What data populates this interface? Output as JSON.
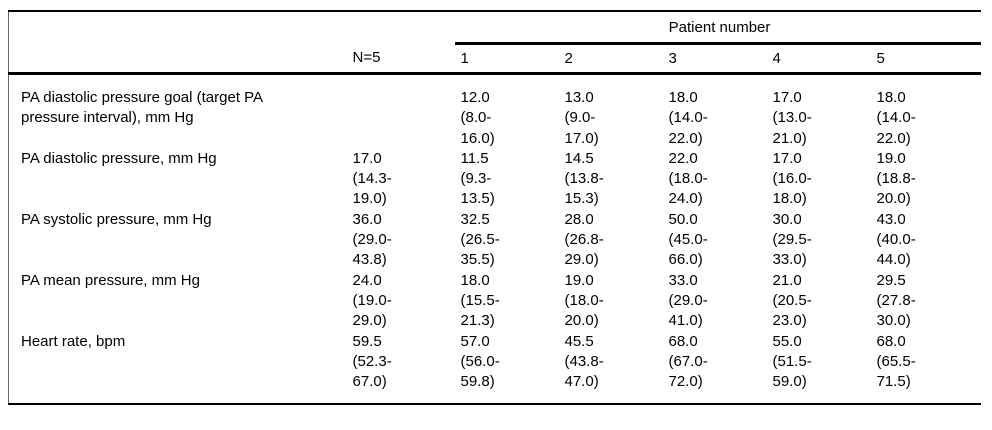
{
  "table": {
    "spanner_label": "Patient number",
    "column_headers": {
      "row_label": "",
      "n": "N=5",
      "patients": [
        "1",
        "2",
        "3",
        "4",
        "5"
      ]
    },
    "rows": [
      {
        "label_lines": [
          "PA diastolic pressure goal (target PA",
          "pressure interval), mm Hg"
        ],
        "n5_lines": [],
        "patient_cells": [
          [
            "12.0",
            "(8.0-",
            "16.0)"
          ],
          [
            "13.0",
            "(9.0-",
            "17.0)"
          ],
          [
            "18.0",
            "(14.0-",
            "22.0)"
          ],
          [
            "17.0",
            "(13.0-",
            "21.0)"
          ],
          [
            "18.0",
            "(14.0-",
            "22.0)"
          ]
        ]
      },
      {
        "label_lines": [
          "PA diastolic pressure, mm Hg"
        ],
        "n5_lines": [
          "17.0",
          "(14.3-",
          "19.0)"
        ],
        "patient_cells": [
          [
            "11.5",
            "(9.3-",
            "13.5)"
          ],
          [
            "14.5",
            "(13.8-",
            "15.3)"
          ],
          [
            "22.0",
            "(18.0-",
            "24.0)"
          ],
          [
            "17.0",
            "(16.0-",
            "18.0)"
          ],
          [
            "19.0",
            "(18.8-",
            "20.0)"
          ]
        ]
      },
      {
        "label_lines": [
          "PA systolic pressure, mm Hg"
        ],
        "n5_lines": [
          "36.0",
          "(29.0-",
          "43.8)"
        ],
        "patient_cells": [
          [
            "32.5",
            "(26.5-",
            "35.5)"
          ],
          [
            "28.0",
            "(26.8-",
            "29.0)"
          ],
          [
            "50.0",
            "(45.0-",
            "66.0)"
          ],
          [
            "30.0",
            "(29.5-",
            "33.0)"
          ],
          [
            "43.0",
            "(40.0-",
            "44.0)"
          ]
        ]
      },
      {
        "label_lines": [
          "PA mean pressure, mm Hg"
        ],
        "n5_lines": [
          "24.0",
          "(19.0-",
          "29.0)"
        ],
        "patient_cells": [
          [
            "18.0",
            "(15.5-",
            "21.3)"
          ],
          [
            "19.0",
            "(18.0-",
            "20.0)"
          ],
          [
            "33.0",
            "(29.0-",
            "41.0)"
          ],
          [
            "21.0",
            "(20.5-",
            "23.0)"
          ],
          [
            "29.5",
            "(27.8-",
            "30.0)"
          ]
        ]
      },
      {
        "label_lines": [
          "Heart rate, bpm"
        ],
        "n5_lines": [
          "59.5",
          "(52.3-",
          "67.0)"
        ],
        "patient_cells": [
          [
            "57.0",
            "(56.0-",
            "59.8)"
          ],
          [
            "45.5",
            "(43.8-",
            "47.0)"
          ],
          [
            "68.0",
            "(67.0-",
            "72.0)"
          ],
          [
            "55.0",
            "(51.5-",
            "59.0)"
          ],
          [
            "68.0",
            "(65.5-",
            "71.5)"
          ]
        ]
      }
    ]
  },
  "colors": {
    "text": "#000000",
    "rule": "#000000",
    "background": "#ffffff"
  }
}
